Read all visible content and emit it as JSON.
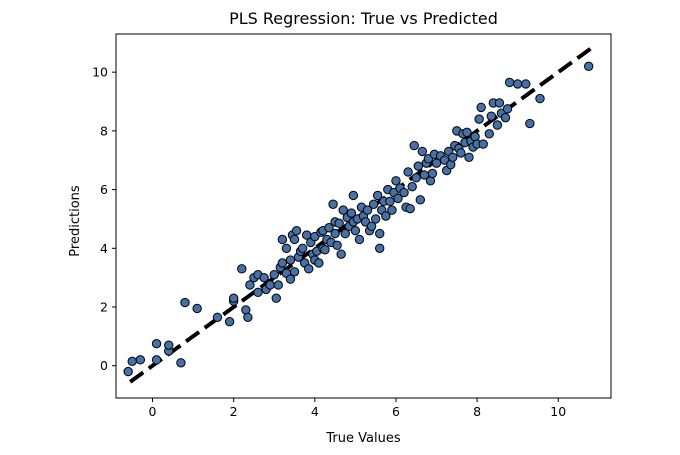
{
  "chart_data": {
    "type": "scatter",
    "title": "PLS Regression: True vs Predicted",
    "xlabel": "True Values",
    "ylabel": "Predictions",
    "xlim": [
      -0.9,
      11.3
    ],
    "ylim": [
      -1.1,
      11.3
    ],
    "xticks": [
      0,
      2,
      4,
      6,
      8,
      10
    ],
    "yticks": [
      0,
      2,
      4,
      6,
      8,
      10
    ],
    "grid": false,
    "legend": "none",
    "marker_color": "#4670a8",
    "marker_edge_color": "#000000",
    "reference_line": {
      "from": [
        -0.55,
        -0.55
      ],
      "to": [
        10.8,
        10.8
      ],
      "color": "#000000",
      "style": "dashed"
    },
    "points": [
      [
        -0.6,
        -0.2
      ],
      [
        -0.5,
        0.15
      ],
      [
        -0.3,
        0.2
      ],
      [
        0.1,
        0.75
      ],
      [
        0.1,
        0.2
      ],
      [
        0.4,
        0.5
      ],
      [
        0.4,
        0.7
      ],
      [
        0.7,
        0.1
      ],
      [
        0.8,
        2.15
      ],
      [
        1.1,
        1.95
      ],
      [
        1.6,
        1.65
      ],
      [
        1.9,
        1.5
      ],
      [
        2.0,
        2.2
      ],
      [
        2.0,
        2.3
      ],
      [
        2.2,
        3.3
      ],
      [
        2.3,
        1.9
      ],
      [
        2.35,
        1.65
      ],
      [
        2.4,
        2.75
      ],
      [
        2.5,
        3.0
      ],
      [
        2.6,
        2.5
      ],
      [
        2.6,
        3.1
      ],
      [
        2.75,
        3.0
      ],
      [
        2.8,
        2.6
      ],
      [
        2.9,
        2.75
      ],
      [
        3.0,
        3.1
      ],
      [
        3.05,
        2.3
      ],
      [
        3.1,
        2.75
      ],
      [
        3.15,
        3.35
      ],
      [
        3.2,
        3.5
      ],
      [
        3.2,
        4.3
      ],
      [
        3.3,
        3.15
      ],
      [
        3.3,
        4.0
      ],
      [
        3.4,
        2.95
      ],
      [
        3.4,
        3.6
      ],
      [
        3.45,
        4.45
      ],
      [
        3.5,
        3.2
      ],
      [
        3.5,
        4.3
      ],
      [
        3.55,
        4.6
      ],
      [
        3.6,
        3.7
      ],
      [
        3.65,
        3.9
      ],
      [
        3.7,
        4.0
      ],
      [
        3.75,
        3.5
      ],
      [
        3.8,
        4.45
      ],
      [
        3.85,
        3.3
      ],
      [
        3.9,
        4.2
      ],
      [
        3.95,
        3.8
      ],
      [
        4.0,
        3.6
      ],
      [
        4.0,
        4.4
      ],
      [
        4.05,
        3.9
      ],
      [
        4.1,
        3.5
      ],
      [
        4.15,
        4.55
      ],
      [
        4.2,
        4.0
      ],
      [
        4.2,
        4.6
      ],
      [
        4.25,
        3.95
      ],
      [
        4.3,
        4.3
      ],
      [
        4.35,
        4.7
      ],
      [
        4.4,
        4.2
      ],
      [
        4.45,
        5.5
      ],
      [
        4.5,
        4.5
      ],
      [
        4.5,
        4.9
      ],
      [
        4.55,
        4.1
      ],
      [
        4.6,
        4.85
      ],
      [
        4.65,
        3.8
      ],
      [
        4.7,
        5.3
      ],
      [
        4.75,
        4.5
      ],
      [
        4.8,
        5.05
      ],
      [
        4.85,
        4.75
      ],
      [
        4.9,
        5.2
      ],
      [
        4.95,
        4.9
      ],
      [
        4.95,
        5.8
      ],
      [
        5.0,
        4.6
      ],
      [
        5.05,
        5.0
      ],
      [
        5.1,
        4.3
      ],
      [
        5.15,
        5.4
      ],
      [
        5.2,
        5.1
      ],
      [
        5.25,
        4.9
      ],
      [
        5.3,
        5.3
      ],
      [
        5.35,
        4.6
      ],
      [
        5.4,
        4.75
      ],
      [
        5.45,
        5.5
      ],
      [
        5.5,
        5.0
      ],
      [
        5.55,
        5.8
      ],
      [
        5.6,
        4.0
      ],
      [
        5.6,
        4.5
      ],
      [
        5.65,
        5.3
      ],
      [
        5.7,
        5.6
      ],
      [
        5.75,
        5.1
      ],
      [
        5.8,
        6.0
      ],
      [
        5.85,
        5.6
      ],
      [
        5.9,
        5.3
      ],
      [
        5.95,
        5.9
      ],
      [
        6.0,
        6.3
      ],
      [
        6.05,
        5.7
      ],
      [
        6.1,
        6.05
      ],
      [
        6.2,
        5.9
      ],
      [
        6.25,
        5.4
      ],
      [
        6.3,
        6.6
      ],
      [
        6.35,
        5.35
      ],
      [
        6.4,
        6.1
      ],
      [
        6.45,
        7.5
      ],
      [
        6.5,
        6.4
      ],
      [
        6.55,
        6.8
      ],
      [
        6.6,
        5.65
      ],
      [
        6.65,
        7.3
      ],
      [
        6.7,
        6.5
      ],
      [
        6.75,
        6.9
      ],
      [
        6.8,
        7.05
      ],
      [
        6.85,
        6.3
      ],
      [
        6.9,
        6.55
      ],
      [
        6.95,
        7.2
      ],
      [
        7.0,
        6.9
      ],
      [
        7.1,
        7.15
      ],
      [
        7.2,
        7.0
      ],
      [
        7.25,
        6.65
      ],
      [
        7.3,
        7.3
      ],
      [
        7.35,
        6.85
      ],
      [
        7.4,
        7.1
      ],
      [
        7.45,
        7.5
      ],
      [
        7.5,
        8.0
      ],
      [
        7.55,
        7.4
      ],
      [
        7.6,
        7.25
      ],
      [
        7.65,
        7.9
      ],
      [
        7.7,
        7.6
      ],
      [
        7.75,
        7.95
      ],
      [
        7.8,
        7.1
      ],
      [
        7.85,
        7.65
      ],
      [
        7.9,
        7.45
      ],
      [
        7.95,
        7.8
      ],
      [
        8.0,
        7.55
      ],
      [
        8.05,
        8.4
      ],
      [
        8.1,
        8.8
      ],
      [
        8.15,
        7.55
      ],
      [
        8.3,
        7.9
      ],
      [
        8.35,
        8.5
      ],
      [
        8.4,
        8.95
      ],
      [
        8.5,
        8.2
      ],
      [
        8.55,
        8.95
      ],
      [
        8.6,
        8.6
      ],
      [
        8.7,
        8.45
      ],
      [
        8.75,
        8.75
      ],
      [
        8.8,
        9.65
      ],
      [
        9.0,
        9.6
      ],
      [
        9.2,
        9.6
      ],
      [
        9.3,
        8.25
      ],
      [
        9.55,
        9.1
      ],
      [
        10.75,
        10.2
      ]
    ]
  }
}
